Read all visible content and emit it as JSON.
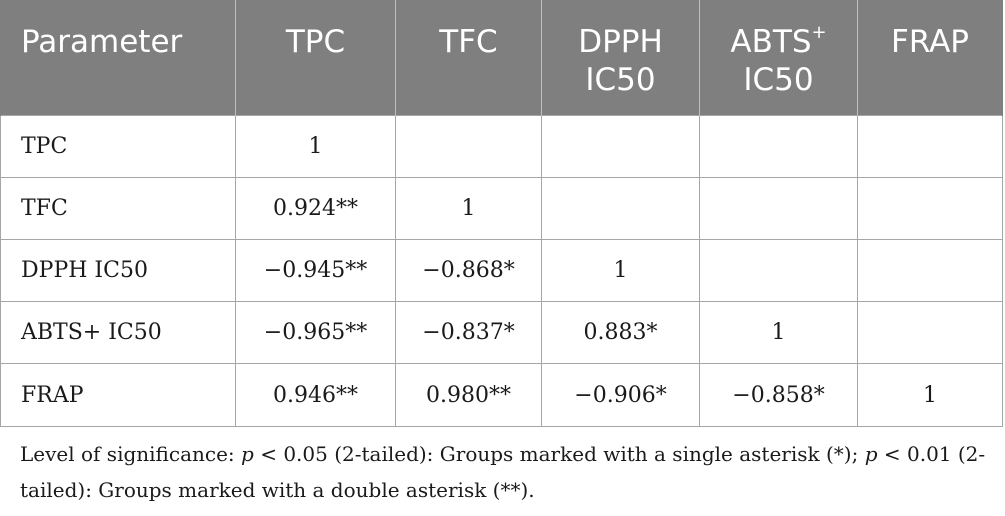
{
  "table": {
    "headers": [
      {
        "line1": "Parameter",
        "line2": ""
      },
      {
        "line1": "TPC",
        "line2": ""
      },
      {
        "line1": "TFC",
        "line2": ""
      },
      {
        "line1": "DPPH",
        "line2": "IC50"
      },
      {
        "line1": "ABTS",
        "sup": "+",
        "line2": "IC50"
      },
      {
        "line1": "FRAP",
        "line2": ""
      }
    ],
    "rows": [
      [
        "TPC",
        "1",
        "",
        "",
        "",
        ""
      ],
      [
        "TFC",
        "0.924**",
        "1",
        "",
        "",
        ""
      ],
      [
        "DPPH IC50",
        "−0.945**",
        "−0.868*",
        "1",
        "",
        ""
      ],
      [
        "ABTS+ IC50",
        "−0.965**",
        "−0.837*",
        "0.883*",
        "1",
        ""
      ],
      [
        "FRAP",
        "0.946**",
        "0.980**",
        "−0.906*",
        "−0.858*",
        "1"
      ]
    ]
  },
  "footnote": {
    "part1": "Level of significance: ",
    "p1": "p",
    "part2": " < 0.05 (2-tailed): Groups marked with a single asterisk (*); ",
    "p2": "p",
    "part3": " < 0.01 (2-tailed): Groups marked with a double asterisk (**)."
  },
  "colors": {
    "header_bg": "#7f7f7f",
    "header_text": "#ffffff",
    "border": "#a6a6a6",
    "body_text": "#1a1a1a"
  }
}
